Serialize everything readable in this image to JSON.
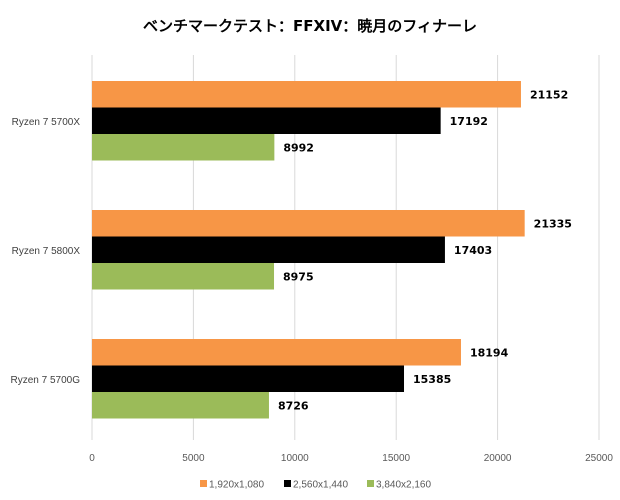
{
  "chart_data": {
    "type": "bar",
    "orientation": "horizontal",
    "title": "ベンチマークテスト：FFXIV：暁月のフィナーレ",
    "categories": [
      "Ryzen 7 5700X",
      "Ryzen 7 5800X",
      "Ryzen 7 5700G"
    ],
    "series": [
      {
        "name": "1,920x1,080",
        "color": "#F79646",
        "values": [
          21152,
          21335,
          18194
        ]
      },
      {
        "name": "2,560x1,440",
        "color": "#000000",
        "values": [
          17192,
          17403,
          15385
        ]
      },
      {
        "name": "3,840x2,160",
        "color": "#9BBB59",
        "values": [
          8992,
          8975,
          8726
        ]
      }
    ],
    "xlim": [
      0,
      25000
    ],
    "xticks": [
      "0",
      "5000",
      "10000",
      "15000",
      "20000",
      "25000"
    ],
    "grid": true,
    "legend": "bottom"
  }
}
